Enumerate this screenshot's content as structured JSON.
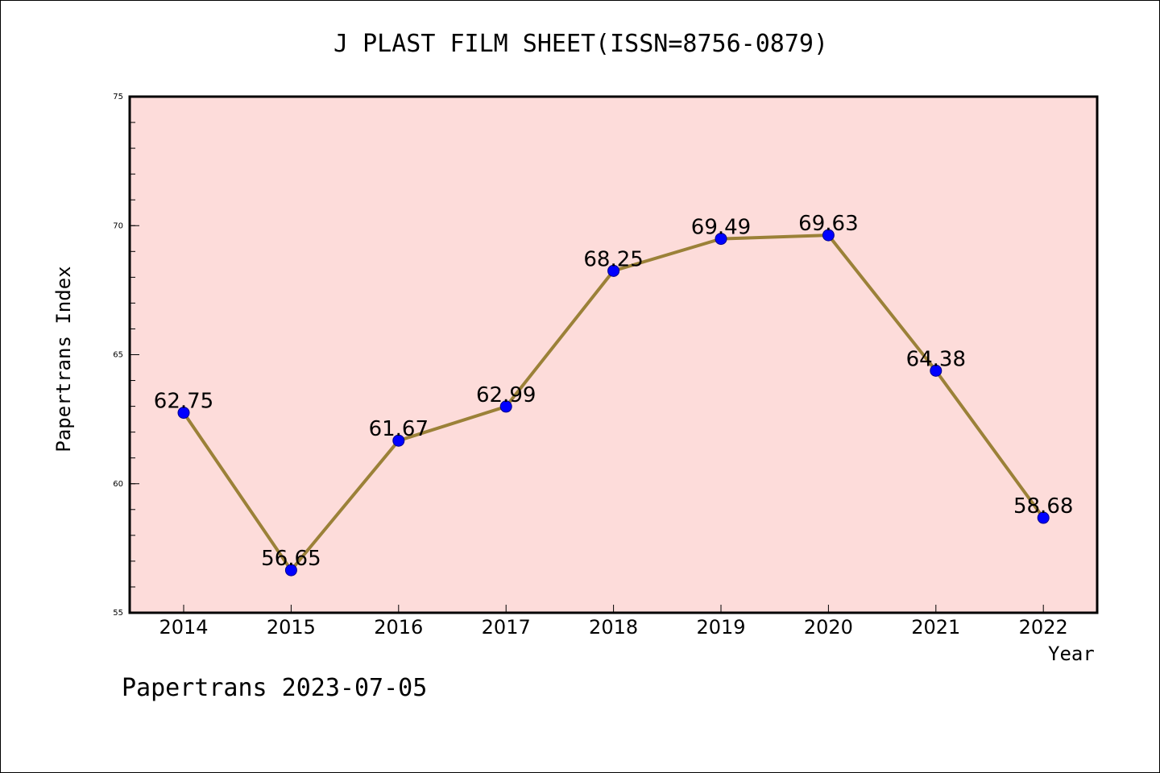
{
  "chart_data": {
    "type": "line",
    "title": "J PLAST FILM SHEET(ISSN=8756-0879)",
    "xlabel": "Year",
    "ylabel": "Papertrans Index",
    "categories": [
      "2014",
      "2015",
      "2016",
      "2017",
      "2018",
      "2019",
      "2020",
      "2021",
      "2022"
    ],
    "values": [
      62.75,
      56.65,
      61.67,
      62.99,
      68.25,
      69.49,
      69.63,
      64.38,
      58.68
    ],
    "data_labels": [
      "62.75",
      "56.65",
      "61.67",
      "62.99",
      "68.25",
      "69.49",
      "69.63",
      "64.38",
      "58.68"
    ],
    "ylim": [
      55,
      75
    ],
    "y_ticks": [
      55,
      60,
      65,
      70,
      75
    ],
    "y_tick_labels": [
      "55",
      "60",
      "65",
      "70",
      "75"
    ],
    "grid": false,
    "legend": "none"
  },
  "footer": "Papertrans 2023-07-05",
  "colors": {
    "plot_background": "#fddcda",
    "line": "#9b8138",
    "marker": "#0000ff",
    "marker_edge": "#00008b",
    "axis": "#000000"
  }
}
